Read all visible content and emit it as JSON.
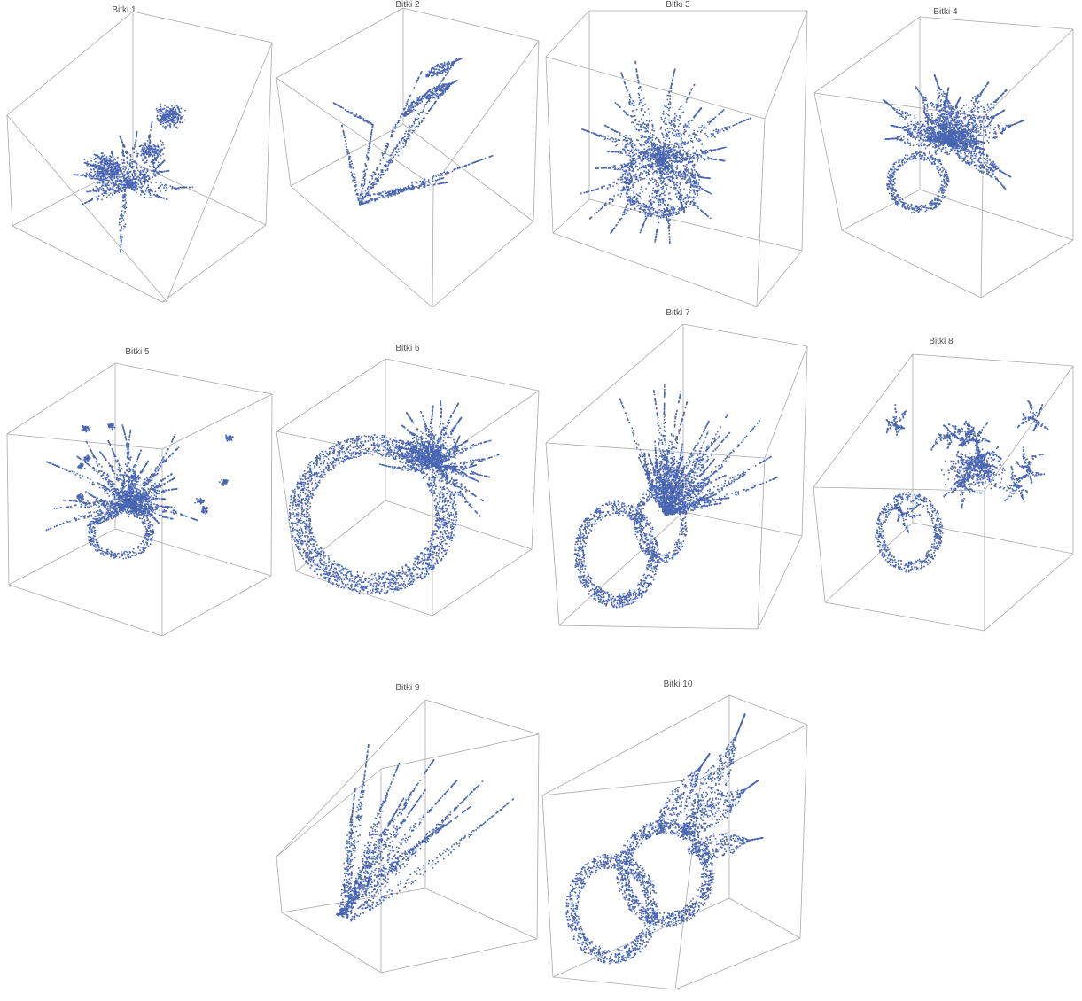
{
  "figure": {
    "point_color": "#4a66b2",
    "box_color": "#aaaaaa",
    "panels": [
      {
        "title": "Bitki 1",
        "plant": "flowering-bush"
      },
      {
        "title": "Bitki 2",
        "plant": "cattail-reeds"
      },
      {
        "title": "Bitki 3",
        "plant": "potted-fern"
      },
      {
        "title": "Bitki 4",
        "plant": "potted-leafy-plant"
      },
      {
        "title": "Bitki 5",
        "plant": "potted-flowering-plant"
      },
      {
        "title": "Bitki 6",
        "plant": "round-pot-plant"
      },
      {
        "title": "Bitki 7",
        "plant": "tilted-pot-spiky-plant"
      },
      {
        "title": "Bitki 8",
        "plant": "tilted-pot-bushy-plant"
      },
      {
        "title": "Bitki 9",
        "plant": "long-grass-blades"
      },
      {
        "title": "Bitki 10",
        "plant": "tilted-pot-broad-leaves"
      }
    ]
  }
}
